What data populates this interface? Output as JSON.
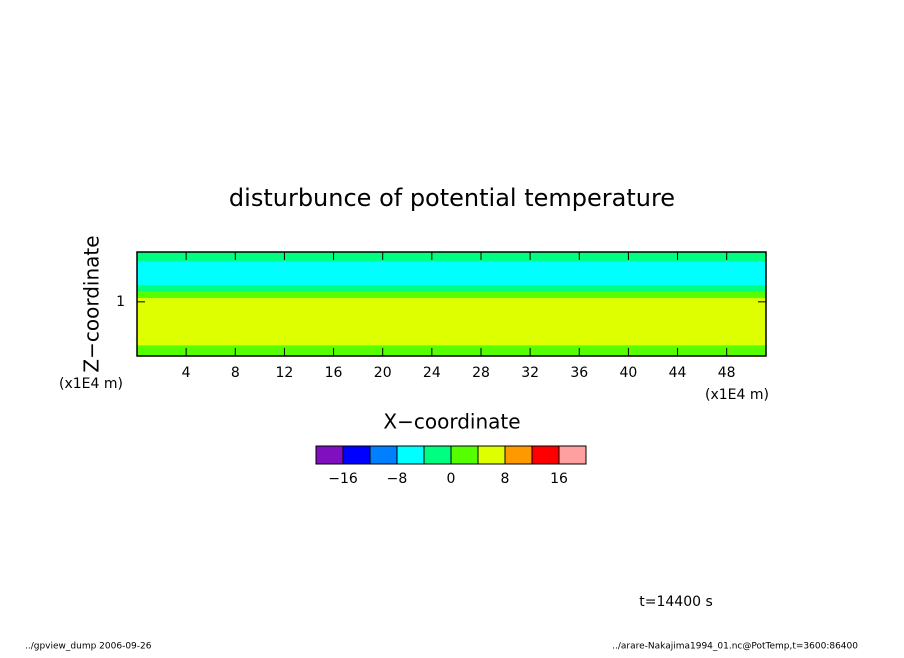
{
  "chart_data": {
    "type": "layers",
    "title": "disturbunce of potential temperature",
    "x_label": "X−coordinate",
    "y_label": "Z−coordinate",
    "x_unit": "(x1E4 m)",
    "y_unit": "(x1E4 m)",
    "xlim": [
      0,
      51.2
    ],
    "xticks": [
      4,
      8,
      12,
      16,
      20,
      24,
      28,
      32,
      36,
      40,
      44,
      48
    ],
    "ylim": [
      0,
      1.92
    ],
    "yticks": [
      1
    ],
    "z_edges": [
      0,
      0.2,
      1.07,
      1.19,
      1.31,
      1.74,
      1.92
    ],
    "values": [
      2,
      6,
      2,
      -2,
      -6,
      -2
    ],
    "colorbar": {
      "levels": [
        -16,
        -12,
        -8,
        -4,
        0,
        4,
        8,
        12,
        16
      ],
      "colors": [
        "#7f0fbf",
        "#0000ff",
        "#0080ff",
        "#00ffff",
        "#00ff80",
        "#55ff00",
        "#ddff00",
        "#ff9900",
        "#ff0000",
        "#ffa0a0"
      ],
      "ticks": [
        {
          "value": -16,
          "label": "−16"
        },
        {
          "value": -8,
          "label": "−8"
        },
        0,
        8,
        16
      ]
    },
    "time_label": "t=14400 s",
    "footer_left": "../gpview_dump  2006-09-26",
    "footer_right": "../arare-Nakajima1994_01.nc@PotTemp,t=3600:86400"
  }
}
